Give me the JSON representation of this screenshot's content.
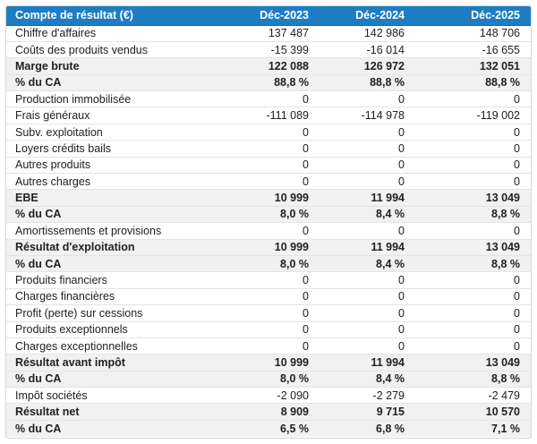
{
  "table": {
    "header": {
      "label": "Compte de résultat (€)",
      "columns": [
        "Déc-2023",
        "Déc-2024",
        "Déc-2025"
      ]
    },
    "rows": [
      {
        "label": "Chiffre d'affaires",
        "values": [
          "137 487",
          "142 986",
          "148 706"
        ],
        "style": "normal"
      },
      {
        "label": "Coûts des produits vendus",
        "values": [
          "-15 399",
          "-16 014",
          "-16 655"
        ],
        "style": "normal"
      },
      {
        "label": "Marge brute",
        "values": [
          "122 088",
          "126 972",
          "132 051"
        ],
        "style": "summary"
      },
      {
        "label": "% du CA",
        "values": [
          "88,8 %",
          "88,8 %",
          "88,8 %"
        ],
        "style": "summary"
      },
      {
        "label": "Production immobilisée",
        "values": [
          "0",
          "0",
          "0"
        ],
        "style": "normal"
      },
      {
        "label": "Frais généraux",
        "values": [
          "-111 089",
          "-114 978",
          "-119 002"
        ],
        "style": "normal"
      },
      {
        "label": "Subv. exploitation",
        "values": [
          "0",
          "0",
          "0"
        ],
        "style": "normal"
      },
      {
        "label": "Loyers crédits bails",
        "values": [
          "0",
          "0",
          "0"
        ],
        "style": "normal"
      },
      {
        "label": "Autres produits",
        "values": [
          "0",
          "0",
          "0"
        ],
        "style": "normal"
      },
      {
        "label": "Autres charges",
        "values": [
          "0",
          "0",
          "0"
        ],
        "style": "normal"
      },
      {
        "label": "EBE",
        "values": [
          "10 999",
          "11 994",
          "13 049"
        ],
        "style": "summary"
      },
      {
        "label": "% du CA",
        "values": [
          "8,0 %",
          "8,4 %",
          "8,8 %"
        ],
        "style": "summary"
      },
      {
        "label": "Amortissements et provisions",
        "values": [
          "0",
          "0",
          "0"
        ],
        "style": "normal"
      },
      {
        "label": "Résultat d'exploitation",
        "values": [
          "10 999",
          "11 994",
          "13 049"
        ],
        "style": "summary"
      },
      {
        "label": "% du CA",
        "values": [
          "8,0 %",
          "8,4 %",
          "8,8 %"
        ],
        "style": "summary"
      },
      {
        "label": "Produits financiers",
        "values": [
          "0",
          "0",
          "0"
        ],
        "style": "normal"
      },
      {
        "label": "Charges financières",
        "values": [
          "0",
          "0",
          "0"
        ],
        "style": "normal"
      },
      {
        "label": "Profit (perte) sur cessions",
        "values": [
          "0",
          "0",
          "0"
        ],
        "style": "normal"
      },
      {
        "label": "Produits exceptionnels",
        "values": [
          "0",
          "0",
          "0"
        ],
        "style": "normal"
      },
      {
        "label": "Charges exceptionnelles",
        "values": [
          "0",
          "0",
          "0"
        ],
        "style": "normal"
      },
      {
        "label": "Résultat avant impôt",
        "values": [
          "10 999",
          "11 994",
          "13 049"
        ],
        "style": "summary"
      },
      {
        "label": "% du CA",
        "values": [
          "8,0 %",
          "8,4 %",
          "8,8 %"
        ],
        "style": "summary"
      },
      {
        "label": "Impôt sociétés",
        "values": [
          "-2 090",
          "-2 279",
          "-2 479"
        ],
        "style": "normal"
      },
      {
        "label": "Résultat net",
        "values": [
          "8 909",
          "9 715",
          "10 570"
        ],
        "style": "summary"
      },
      {
        "label": "% du CA",
        "values": [
          "6,5 %",
          "6,8 %",
          "7,1 %"
        ],
        "style": "summary"
      }
    ],
    "colors": {
      "header_bg": "#1e7dc2",
      "header_border": "#1768a8",
      "header_text": "#ffffff",
      "summary_row_bg": "#f1f1f1",
      "row_border": "#e4e4e4",
      "outer_border": "#d5d5d5",
      "text": "#212121"
    }
  }
}
